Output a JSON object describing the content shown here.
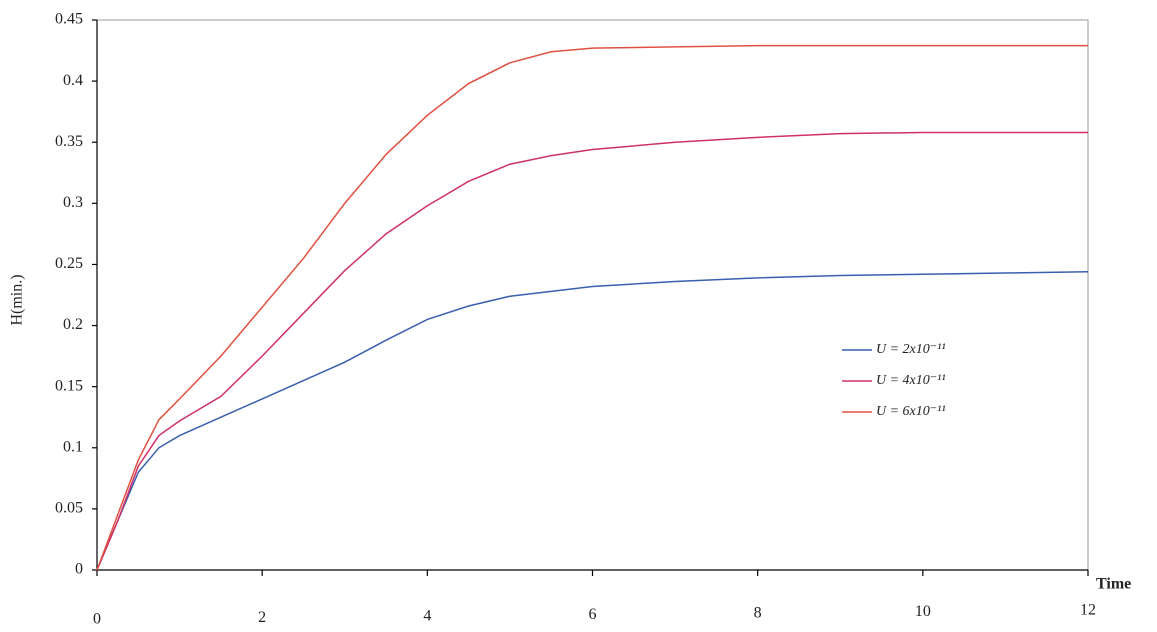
{
  "chart_data": {
    "type": "line",
    "y_label": "H(min.)",
    "x_label": "Time",
    "x": [
      0,
      0.25,
      0.5,
      0.75,
      1,
      1.5,
      2,
      2.5,
      3,
      3.5,
      4,
      4.5,
      5,
      5.5,
      6,
      7,
      8,
      9,
      10,
      11,
      12
    ],
    "series": [
      {
        "name": "U = 2x10⁻¹¹",
        "color": "#3a5fb0",
        "values": [
          0,
          0.04,
          0.08,
          0.1,
          0.11,
          0.125,
          0.14,
          0.155,
          0.17,
          0.188,
          0.205,
          0.216,
          0.224,
          0.228,
          0.232,
          0.236,
          0.239,
          0.241,
          0.242,
          0.243,
          0.244
        ]
      },
      {
        "name": "U = 4x10⁻¹¹",
        "color": "#d0306a",
        "values": [
          0,
          0.04,
          0.085,
          0.11,
          0.122,
          0.142,
          0.175,
          0.21,
          0.245,
          0.275,
          0.298,
          0.318,
          0.332,
          0.339,
          0.344,
          0.35,
          0.354,
          0.357,
          0.358,
          0.358,
          0.358
        ]
      },
      {
        "name": "U = 6x10⁻¹¹",
        "color": "#e05040",
        "values": [
          0,
          0.045,
          0.09,
          0.123,
          0.14,
          0.175,
          0.215,
          0.255,
          0.3,
          0.34,
          0.372,
          0.398,
          0.415,
          0.424,
          0.427,
          0.428,
          0.429,
          0.429,
          0.429,
          0.429,
          0.429
        ]
      }
    ],
    "xlim": [
      0,
      12
    ],
    "xticks": [
      0,
      2,
      4,
      6,
      8,
      10,
      12
    ],
    "ylim": [
      0,
      0.45
    ],
    "yticks": [
      0,
      0.05,
      0.1,
      0.15,
      0.2,
      0.25,
      0.3,
      0.35,
      0.4,
      0.45
    ],
    "grid": false,
    "legend": "right"
  }
}
